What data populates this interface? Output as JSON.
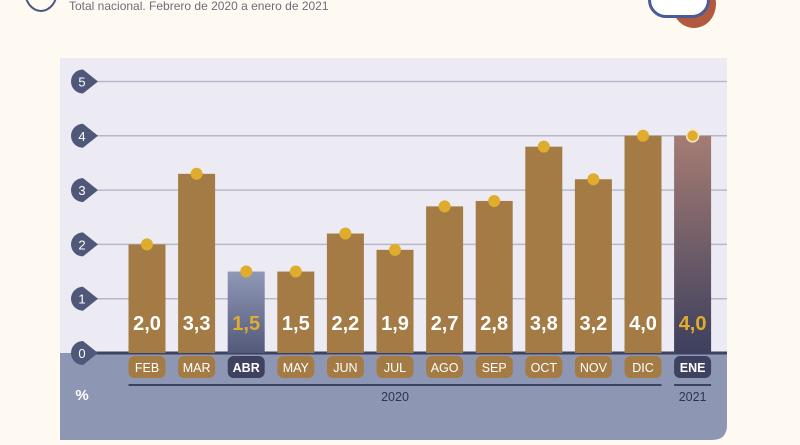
{
  "header": {
    "subtitle": "Total nacional. Febrero de 2020 a enero de 2021"
  },
  "colors": {
    "bar": "#a47b45",
    "dot": "#e0ac2e",
    "highlight_bar_top": "#9098b8",
    "highlight_bar_bottom": "#535979",
    "latest_bar_top": "#a57c73",
    "latest_bar_bottom": "#3d405e",
    "axis_band": "#8d97b4",
    "plot_bg": "#ecebf4",
    "tick_marker": "#4f5878"
  },
  "chart_data": {
    "type": "bar",
    "unit_label": "%",
    "categories": [
      "FEB",
      "MAR",
      "ABR",
      "MAY",
      "JUN",
      "JUL",
      "AGO",
      "SEP",
      "OCT",
      "NOV",
      "DIC",
      "ENE"
    ],
    "values": [
      2.0,
      3.3,
      1.5,
      1.5,
      2.2,
      1.9,
      2.7,
      2.8,
      3.8,
      3.2,
      4.0,
      4.0
    ],
    "value_labels": [
      "2,0",
      "3,3",
      "1,5",
      "1,5",
      "2,2",
      "1,9",
      "2,7",
      "2,8",
      "3,8",
      "3,2",
      "4,0",
      "4,0"
    ],
    "highlighted": [
      "ABR",
      "ENE"
    ],
    "years": [
      {
        "label": "2020",
        "from": "FEB",
        "to": "DIC"
      },
      {
        "label": "2021",
        "from": "ENE",
        "to": "ENE"
      }
    ],
    "yticks": [
      "0",
      "1",
      "2",
      "3",
      "4",
      "5"
    ],
    "ylim": [
      0,
      5
    ],
    "grid": true
  }
}
